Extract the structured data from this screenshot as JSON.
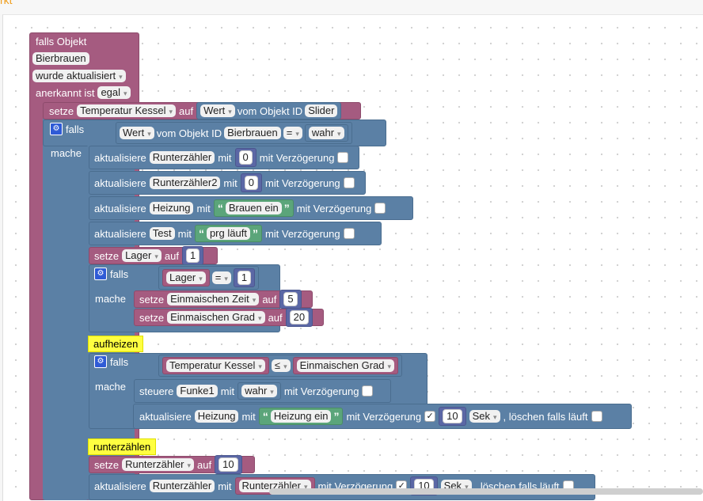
{
  "header": {
    "label": "rkt"
  },
  "trigger": {
    "title": "falls Objekt",
    "object": "Bierbrauen",
    "event": "wurde aktualisiert",
    "ack_label": "anerkannt ist",
    "ack_value": "egal"
  },
  "setze1": {
    "kw": "setze",
    "var": "Temperatur Kessel",
    "auf": "auf",
    "wert": "Wert",
    "vom": "vom Objekt ID",
    "obj": "Slider"
  },
  "if1": {
    "falls": "falls",
    "mache": "mache",
    "cond": {
      "wert": "Wert",
      "vom": "vom Objekt ID",
      "obj": "Bierbrauen",
      "op": "=",
      "value": "wahr"
    }
  },
  "upd1": {
    "kw": "aktualisiere",
    "obj": "Runterzähler",
    "mit": "mit",
    "val": "0",
    "delay": "mit Verzögerung"
  },
  "upd2": {
    "kw": "aktualisiere",
    "obj": "Runterzähler2",
    "mit": "mit",
    "val": "0",
    "delay": "mit Verzögerung"
  },
  "upd3": {
    "kw": "aktualisiere",
    "obj": "Heizung",
    "mit": "mit",
    "val": "Brauen ein",
    "delay": "mit Verzögerung"
  },
  "upd4": {
    "kw": "aktualisiere",
    "obj": "Test",
    "mit": "mit",
    "val": "prg läuft",
    "delay": "mit Verzögerung"
  },
  "setze2": {
    "kw": "setze",
    "var": "Lager",
    "auf": "auf",
    "val": "1"
  },
  "if2": {
    "falls": "falls",
    "mache": "mache",
    "cond": {
      "var": "Lager",
      "op": "=",
      "val": "1"
    },
    "set_a": {
      "kw": "setze",
      "var": "Einmaischen Zeit",
      "auf": "auf",
      "val": "5"
    },
    "set_b": {
      "kw": "setze",
      "var": "Einmaischen Grad",
      "auf": "auf",
      "val": "20"
    }
  },
  "comment1": "aufheizen",
  "if3": {
    "falls": "falls",
    "mache": "mache",
    "cond": {
      "a": "Temperatur Kessel",
      "op": "≤",
      "b": "Einmaischen Grad"
    },
    "steuere": {
      "kw": "steuere",
      "obj": "Funke1",
      "mit": "mit",
      "val": "wahr",
      "delay": "mit Verzögerung"
    },
    "upd": {
      "kw": "aktualisiere",
      "obj": "Heizung",
      "mit": "mit",
      "val": "Heizung ein",
      "delay": "mit Verzögerung",
      "num": "10",
      "unit": "Sek",
      "clear": ", löschen falls läuft"
    }
  },
  "comment2": "runterzählen",
  "setze3": {
    "kw": "setze",
    "var": "Runterzähler",
    "auf": "auf",
    "val": "10"
  },
  "upd5": {
    "kw": "aktualisiere",
    "obj": "Runterzähler",
    "mit": "mit",
    "val": "Runterzähler",
    "delay": "mit Verzögerung",
    "num": "10",
    "unit": "Sek",
    "clear": ", löschen falls läuft"
  },
  "icons": {
    "gear": "gear-icon",
    "check": "checkmark-icon",
    "quote_open": "open-quote-icon",
    "quote_close": "close-quote-icon"
  },
  "colors": {
    "trigger": "#a55b80",
    "action": "#5b80a5",
    "text": "#5ba57a",
    "comment": "#ffff40"
  }
}
